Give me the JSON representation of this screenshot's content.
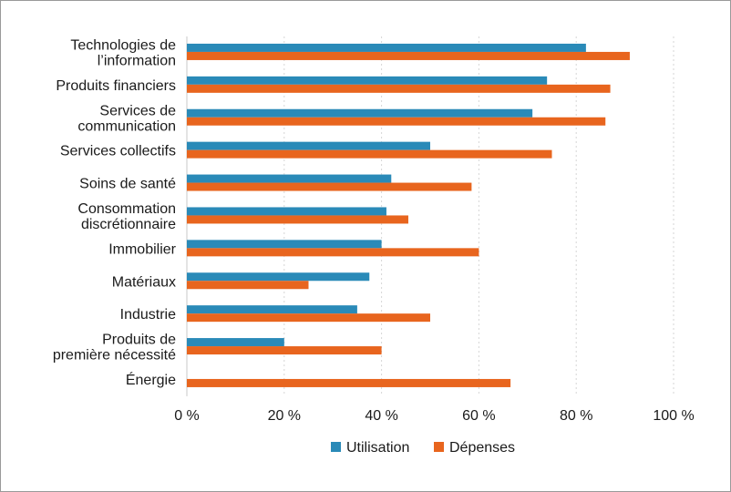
{
  "chart_data": {
    "type": "bar",
    "orientation": "horizontal",
    "title": "",
    "xlabel": "",
    "ylabel": "",
    "xlim": [
      0,
      100
    ],
    "x_ticks": [
      0,
      20,
      40,
      60,
      80,
      100
    ],
    "x_tick_labels": [
      "0 %",
      "20 %",
      "40 %",
      "60 %",
      "80 %",
      "100 %"
    ],
    "grid": true,
    "legend_position": "bottom",
    "categories": [
      [
        "Technologies de",
        "l’information"
      ],
      [
        "Produits financiers"
      ],
      [
        "Services de",
        "communication"
      ],
      [
        "Services collectifs"
      ],
      [
        "Soins de santé"
      ],
      [
        "Consommation",
        "discrétionnaire"
      ],
      [
        "Immobilier"
      ],
      [
        "Matériaux"
      ],
      [
        "Industrie"
      ],
      [
        "Produits de",
        "première nécessité"
      ],
      [
        "Énergie"
      ]
    ],
    "series": [
      {
        "name": "Utilisation",
        "color": "#2a8ab8",
        "values": [
          82,
          74,
          71,
          50,
          42,
          41,
          40,
          37.5,
          35,
          20,
          0
        ]
      },
      {
        "name": "Dépenses",
        "color": "#e8651e",
        "values": [
          91,
          87,
          86,
          75,
          58.5,
          45.5,
          60,
          25,
          50,
          40,
          66.5
        ]
      }
    ]
  }
}
